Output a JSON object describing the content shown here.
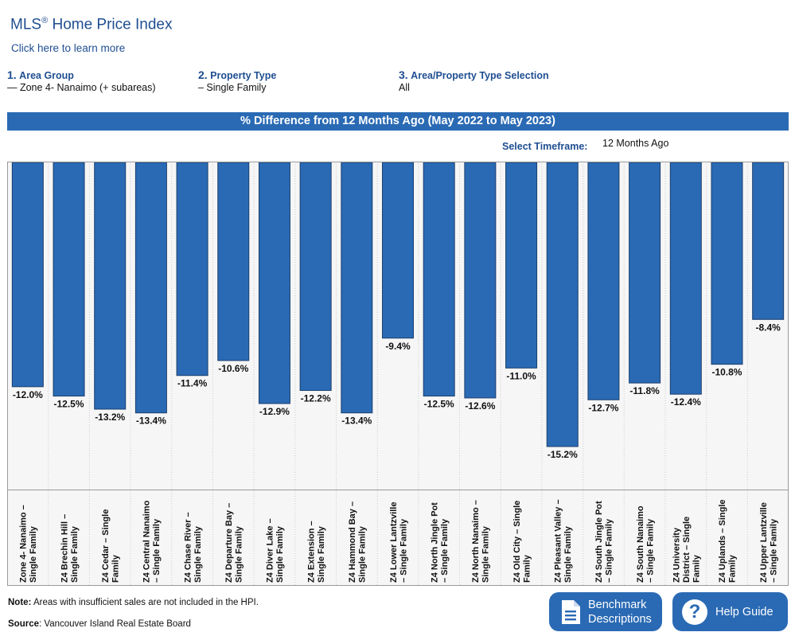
{
  "header": {
    "title": "MLS",
    "title_reg": "®",
    "title_rest": " Home Price Index",
    "learn_more": "Click here to learn more"
  },
  "steps": [
    {
      "num": "1.",
      "label": "Area Group",
      "value": "— Zone 4- Nanaimo (+ subareas)"
    },
    {
      "num": "2.",
      "label": "Property Type",
      "value": "– Single Family"
    },
    {
      "num": "3.",
      "label": "Area/Property Type Selection",
      "value": "All"
    }
  ],
  "banner": "% Difference from 12 Months Ago (May 2022 to May 2023)",
  "timeframe": {
    "label": "Select Timeframe:",
    "value": "12 Months Ago"
  },
  "footer": {
    "note_label": "Note:",
    "note_text": " Areas with insufficient sales are not included in the HPI.",
    "source_label": "Source",
    "source_text": ": Vancouver Island Real Estate Board"
  },
  "buttons": {
    "benchmark_line1": "Benchmark",
    "benchmark_line2": "Descriptions",
    "help": "Help Guide"
  },
  "colors": {
    "bar": "#2a6ab4",
    "banner": "#2a6ab4",
    "accent": "#1f4e91"
  },
  "icons": {
    "benchmark": "document-icon",
    "help": "question-circle-icon"
  },
  "chart_data": {
    "type": "bar",
    "orientation": "vertical-downward",
    "ylim": [
      -17.5,
      0
    ],
    "categories": [
      [
        "Zone 4- Nanaimo –",
        "Single Family"
      ],
      [
        "Z4 Brechin Hill –",
        "Single Family"
      ],
      [
        "Z4 Cedar – Single",
        "Family"
      ],
      [
        "Z4 Central Nanaimo",
        "– Single Family"
      ],
      [
        "Z4 Chase River –",
        "Single Family"
      ],
      [
        "Z4 Departure Bay –",
        "Single Family"
      ],
      [
        "Z4 Diver Lake –",
        "Single Family"
      ],
      [
        "Z4 Extension –",
        "Single Family"
      ],
      [
        "Z4 Hammond Bay –",
        "Single Family"
      ],
      [
        "Z4 Lower Lantzville",
        "– Single Family"
      ],
      [
        "Z4 North Jingle Pot",
        "– Single Family"
      ],
      [
        "Z4 North Nanaimo –",
        "Single Family"
      ],
      [
        "Z4 Old City – Single",
        "Family"
      ],
      [
        "Z4 Pleasant Valley –",
        "Single Family"
      ],
      [
        "Z4 South Jingle Pot",
        "– Single Family"
      ],
      [
        "Z4 South Nanaimo",
        "– Single Family"
      ],
      [
        "Z4 University",
        "District – Single",
        "Family"
      ],
      [
        "Z4 Uplands – Single",
        "Family"
      ],
      [
        "Z4 Upper Lantzville",
        "– Single Family"
      ]
    ],
    "values": [
      -12.0,
      -12.5,
      -13.2,
      -13.4,
      -11.4,
      -10.6,
      -12.9,
      -12.2,
      -13.4,
      -9.4,
      -12.5,
      -12.6,
      -11.0,
      -15.2,
      -12.7,
      -11.8,
      -12.4,
      -10.8,
      -8.4
    ],
    "labels": [
      "-12.0%",
      "-12.5%",
      "-13.2%",
      "-13.4%",
      "-11.4%",
      "-10.6%",
      "-12.9%",
      "-12.2%",
      "-13.4%",
      "-9.4%",
      "-12.5%",
      "-12.6%",
      "-11.0%",
      "-15.2%",
      "-12.7%",
      "-11.8%",
      "-12.4%",
      "-10.8%",
      "-8.4%"
    ]
  }
}
